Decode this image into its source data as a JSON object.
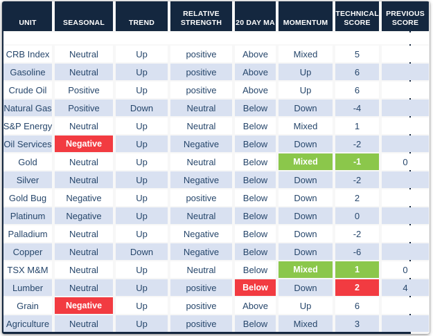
{
  "colors": {
    "header_bg": "#14273f",
    "border": "#14273f",
    "row_stripe": "#d9e1f1",
    "cell_text": "#26466b",
    "negative_highlight_red": "#f23b41",
    "mixed_highlight_green": "#8bc74b"
  },
  "chart_data": {
    "type": "table",
    "columns": [
      {
        "id": "unit",
        "label": "UNIT"
      },
      {
        "id": "seasonal",
        "label": "SEASONAL"
      },
      {
        "id": "trend",
        "label": "TREND"
      },
      {
        "id": "relative-strength",
        "label": "RELATIVE STRENGTH"
      },
      {
        "id": "20-day-ma",
        "label": "20 DAY MA"
      },
      {
        "id": "momentum",
        "label": "MOMENTUM"
      },
      {
        "id": "technical-score",
        "label": "TECHNICAL SCORE"
      },
      {
        "id": "previous-score",
        "label": "PREVIOUS SCORE"
      }
    ],
    "rows": [
      {
        "cells": [
          "CRB Index",
          "Neutral",
          "Up",
          "positive",
          "Above",
          "Mixed",
          "5",
          ""
        ]
      },
      {
        "cells": [
          "Gasoline",
          "Neutral",
          "Up",
          "positive",
          "Above",
          "Up",
          "6",
          ""
        ]
      },
      {
        "cells": [
          "Crude Oil",
          "Positive",
          "Up",
          "positive",
          "Above",
          "Up",
          "6",
          ""
        ]
      },
      {
        "cells": [
          "Natural Gas",
          "Positive",
          "Down",
          "Neutral",
          "Below",
          "Down",
          "-4",
          ""
        ]
      },
      {
        "cells": [
          "S&P Energy",
          "Neutral",
          "Up",
          "Neutral",
          "Below",
          "Mixed",
          "1",
          ""
        ]
      },
      {
        "cells": [
          "Oil Services",
          "Negative",
          "Up",
          "Negative",
          "Below",
          "Down",
          "-2",
          ""
        ],
        "highlights": {
          "1": "red"
        }
      },
      {
        "cells": [
          "Gold",
          "Neutral",
          "Up",
          "Neutral",
          "Below",
          "Mixed",
          "-1",
          "0"
        ],
        "highlights": {
          "5": "green",
          "6": "green"
        }
      },
      {
        "cells": [
          "Silver",
          "Neutral",
          "Up",
          "Negative",
          "Below",
          "Down",
          "-2",
          ""
        ]
      },
      {
        "cells": [
          "Gold Bug",
          "Negative",
          "Up",
          "positive",
          "Below",
          "Down",
          "2",
          ""
        ]
      },
      {
        "cells": [
          "Platinum",
          "Negative",
          "Up",
          "Neutral",
          "Below",
          "Down",
          "0",
          ""
        ]
      },
      {
        "cells": [
          "Palladium",
          "Neutral",
          "Up",
          "Negative",
          "Below",
          "Down",
          "-2",
          ""
        ]
      },
      {
        "cells": [
          "Copper",
          "Neutral",
          "Down",
          "Negative",
          "Below",
          "Down",
          "-6",
          ""
        ]
      },
      {
        "cells": [
          "TSX M&M",
          "Neutral",
          "Up",
          "Neutral",
          "Below",
          "Mixed",
          "1",
          "0"
        ],
        "highlights": {
          "5": "green",
          "6": "green"
        }
      },
      {
        "cells": [
          "Lumber",
          "Neutral",
          "Up",
          "positive",
          "Below",
          "Down",
          "2",
          "4"
        ],
        "highlights": {
          "4": "red",
          "6": "red"
        }
      },
      {
        "cells": [
          "Grain",
          "Negative",
          "Up",
          "positive",
          "Above",
          "Up",
          "6",
          ""
        ],
        "highlights": {
          "1": "red"
        }
      },
      {
        "cells": [
          "Agriculture",
          "Neutral",
          "Up",
          "positive",
          "Below",
          "Mixed",
          "3",
          ""
        ]
      }
    ]
  }
}
